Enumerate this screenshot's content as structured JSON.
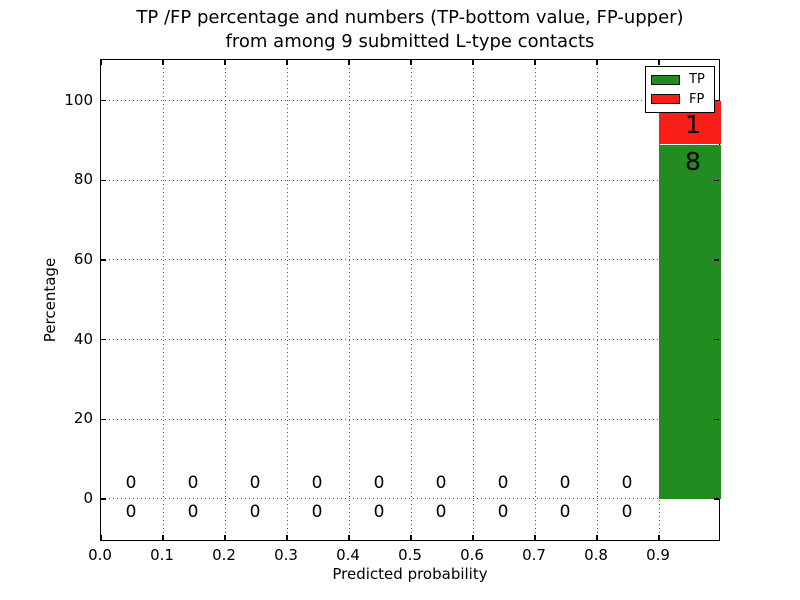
{
  "chart_data": {
    "type": "bar",
    "stacked": true,
    "title": "TP /FP percentage and numbers (TP-bottom value, FP-upper) from among 9 submitted L-type contacts",
    "title_lines": [
      "TP /FP percentage and numbers (TP-bottom value, FP-upper)",
      "from among 9 submitted L-type contacts"
    ],
    "xlabel": "Predicted probability",
    "ylabel": "Percentage",
    "total_contacts": 9,
    "bin_edges": [
      0.0,
      0.1,
      0.2,
      0.3,
      0.4,
      0.5,
      0.6,
      0.7,
      0.8,
      0.9,
      1.0
    ],
    "series": [
      {
        "name": "TP",
        "color": "#228b22",
        "counts": [
          0,
          0,
          0,
          0,
          0,
          0,
          0,
          0,
          0,
          8
        ],
        "percentages": [
          0,
          0,
          0,
          0,
          0,
          0,
          0,
          0,
          0,
          88.89
        ]
      },
      {
        "name": "FP",
        "color": "#fa1e19",
        "counts": [
          0,
          0,
          0,
          0,
          0,
          0,
          0,
          0,
          0,
          1
        ],
        "percentages": [
          0,
          0,
          0,
          0,
          0,
          0,
          0,
          0,
          0,
          11.11
        ]
      }
    ],
    "xticks": [
      0.0,
      0.1,
      0.2,
      0.3,
      0.4,
      0.5,
      0.6,
      0.7,
      0.8,
      0.9
    ],
    "xtick_labels": [
      "0.0",
      "0.1",
      "0.2",
      "0.3",
      "0.4",
      "0.5",
      "0.6",
      "0.7",
      "0.8",
      "0.9"
    ],
    "yticks": [
      0,
      20,
      40,
      60,
      80,
      100
    ],
    "ytick_labels": [
      "0",
      "20",
      "40",
      "60",
      "80",
      "100"
    ],
    "xlim": [
      0.0,
      1.0
    ],
    "ylim": [
      -10.8,
      110.2
    ],
    "grid": true,
    "grid_style": "dotted",
    "legend_position": "upper right",
    "annotation_note": "TP-bottom value, FP-upper",
    "colors": {
      "tp": "#228b22",
      "fp": "#fa1e19",
      "grid": "#555555",
      "frame": "#000000",
      "background": "#ffffff"
    }
  }
}
